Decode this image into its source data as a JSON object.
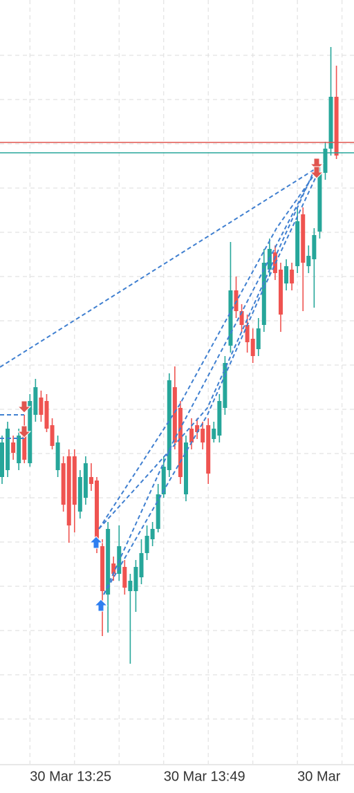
{
  "chart_data": {
    "type": "candlestick",
    "categories": [
      null,
      null,
      null,
      null,
      null,
      null,
      null,
      null,
      null,
      null,
      null,
      null,
      null,
      null,
      null,
      null,
      null,
      null,
      null,
      null,
      null,
      null,
      null,
      null,
      null,
      null,
      null,
      null,
      null,
      null,
      null,
      null,
      null,
      null,
      null,
      null,
      null,
      null,
      null,
      null,
      null,
      null,
      null,
      null,
      null,
      null,
      null,
      null,
      null,
      null,
      null,
      null,
      null,
      null,
      null,
      null,
      null,
      null,
      null,
      null,
      null
    ],
    "open": [
      350,
      360,
      400,
      370,
      420,
      370,
      440,
      465,
      460,
      425,
      360,
      370,
      380,
      380,
      300,
      320,
      350,
      345,
      250,
      180,
      225,
      210,
      220,
      185,
      185,
      205,
      240,
      260,
      275,
      325,
      360,
      480,
      450,
      325,
      420,
      425,
      420,
      425,
      405,
      410,
      450,
      540,
      620,
      590,
      570,
      550,
      535,
      570,
      650,
      675,
      650,
      630,
      650,
      655,
      730,
      655,
      665,
      705,
      790,
      825,
      900
    ],
    "high": [
      410,
      430,
      410,
      420,
      440,
      470,
      492,
      475,
      470,
      435,
      410,
      380,
      390,
      390,
      360,
      380,
      370,
      350,
      260,
      285,
      235,
      280,
      230,
      210,
      230,
      260,
      280,
      285,
      340,
      380,
      500,
      510,
      460,
      410,
      435,
      435,
      430,
      435,
      430,
      470,
      525,
      690,
      640,
      600,
      585,
      565,
      580,
      680,
      695,
      685,
      660,
      665,
      660,
      740,
      740,
      685,
      710,
      800,
      835,
      972,
      945
    ],
    "low": [
      340,
      350,
      375,
      360,
      370,
      365,
      430,
      430,
      415,
      390,
      350,
      300,
      255,
      270,
      290,
      310,
      330,
      240,
      120,
      125,
      200,
      200,
      180,
      80,
      155,
      195,
      230,
      250,
      270,
      320,
      350,
      390,
      340,
      315,
      390,
      405,
      390,
      340,
      400,
      400,
      440,
      530,
      580,
      560,
      530,
      515,
      525,
      560,
      640,
      635,
      560,
      620,
      620,
      645,
      590,
      645,
      595,
      695,
      780,
      815,
      810
    ],
    "close": [
      400,
      420,
      385,
      410,
      375,
      460,
      480,
      440,
      420,
      395,
      400,
      310,
      280,
      310,
      350,
      370,
      340,
      250,
      185,
      275,
      210,
      250,
      190,
      200,
      220,
      240,
      265,
      275,
      325,
      365,
      490,
      400,
      350,
      400,
      400,
      415,
      400,
      355,
      420,
      460,
      515,
      620,
      590,
      570,
      545,
      525,
      565,
      660,
      680,
      645,
      585,
      655,
      630,
      720,
      660,
      670,
      700,
      790,
      825,
      900,
      815
    ],
    "up_color": "#26a69a",
    "down_color": "#ef5350",
    "ylim": [
      -65,
      1040
    ],
    "ygrid": [
      0,
      64,
      128,
      192,
      256,
      320,
      384,
      448,
      512,
      576,
      640,
      704,
      768,
      832,
      896,
      960
    ],
    "xgrid": [
      5,
      13,
      21,
      29,
      37,
      45,
      53,
      61
    ],
    "xticks": [
      {
        "value": 5,
        "label": "30 Mar 13:25"
      },
      {
        "value": 29,
        "label": "30 Mar 13:49"
      },
      {
        "value": 53,
        "label": "30 Mar"
      }
    ],
    "hlines": [
      {
        "value": 834,
        "color": "#e0554f"
      },
      {
        "value": 819,
        "color": "#26a69a"
      }
    ]
  }
}
